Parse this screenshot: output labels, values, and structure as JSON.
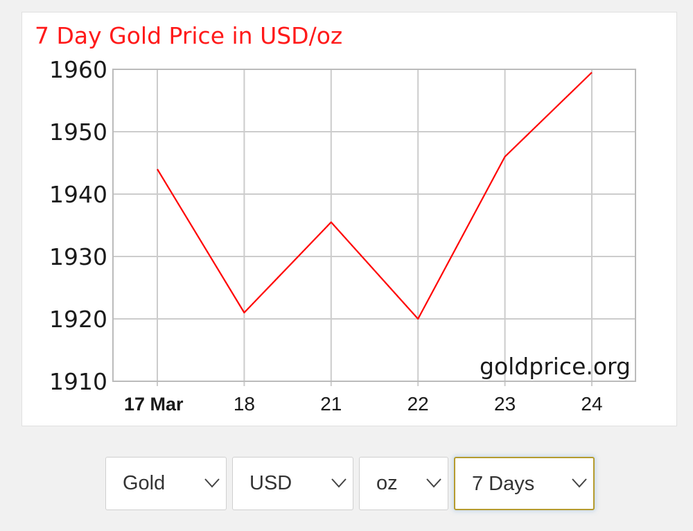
{
  "chart_data": {
    "type": "line",
    "title": "7 Day Gold Price in USD/oz",
    "categories": [
      "17 Mar",
      "18",
      "21",
      "22",
      "23",
      "24"
    ],
    "series": [
      {
        "values": [
          1944,
          1921,
          1935.5,
          1920,
          1946,
          1959.5
        ]
      }
    ],
    "ylim": [
      1910,
      1960
    ],
    "yticks": [
      1910,
      1920,
      1930,
      1940,
      1950,
      1960
    ],
    "grid": true,
    "watermark": "goldprice.org",
    "colors": {
      "line": "#ff0000",
      "title": "#ff1a1a",
      "grid": "#cccccc",
      "axis": "#bbbbbb"
    }
  },
  "controls": {
    "metal": {
      "value": "Gold"
    },
    "currency": {
      "value": "USD"
    },
    "unit": {
      "value": "oz"
    },
    "period": {
      "value": "7 Days"
    }
  }
}
